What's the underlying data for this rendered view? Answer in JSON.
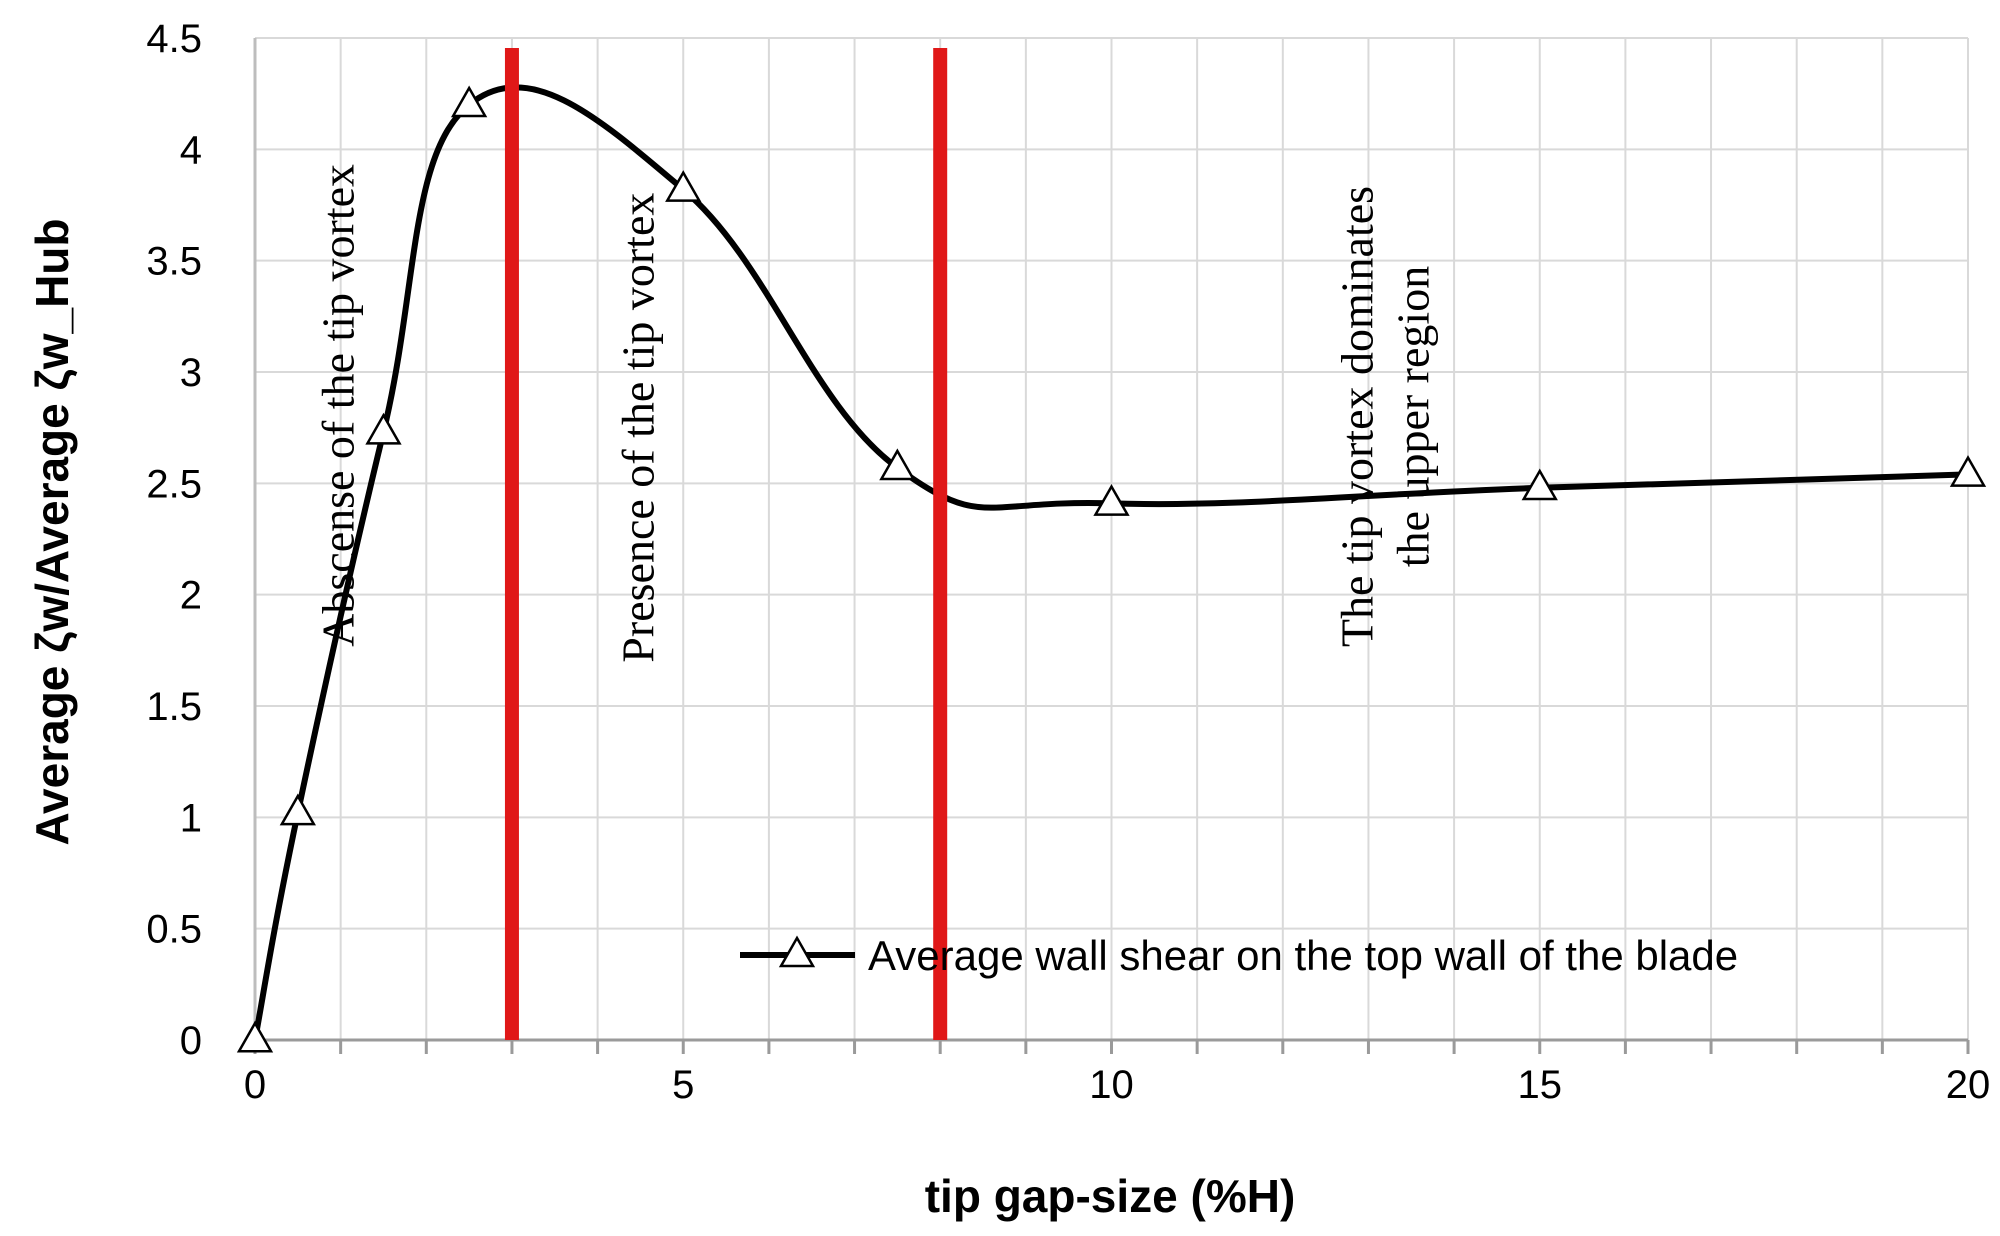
{
  "chart_data": {
    "type": "line",
    "title": "",
    "xlabel": "tip gap-size (%H)",
    "ylabel": "Average ζw/Average ζw_Hub",
    "xlim": [
      0,
      20
    ],
    "ylim": [
      0,
      4.5
    ],
    "x_ticks": [
      "0",
      "5",
      "10",
      "15",
      "20"
    ],
    "y_ticks": [
      "0",
      "0.5",
      "1",
      "1.5",
      "2",
      "2.5",
      "3",
      "3.5",
      "4",
      "4.5"
    ],
    "grid": true,
    "legend_position": "bottom-right",
    "series": [
      {
        "name": "Average wall shear on the top wall of the blade",
        "marker": "triangle",
        "color": "#000000",
        "x": [
          0,
          0.5,
          1.5,
          2.5,
          5,
          7.5,
          10,
          15,
          20
        ],
        "y": [
          0,
          1.02,
          2.73,
          4.2,
          3.82,
          2.57,
          2.41,
          2.48,
          2.54
        ]
      }
    ],
    "vertical_lines": [
      {
        "x": 3,
        "color": "#e01818"
      },
      {
        "x": 8,
        "color": "#e01818"
      }
    ],
    "annotations": [
      {
        "text": "Abscense of the tip vortex",
        "x": 1.15,
        "y": 2.85
      },
      {
        "text": "Presence of the tip vortex",
        "x": 4.65,
        "y": 2.75
      },
      {
        "text": "The tip vortex dominates",
        "x": 13.05,
        "y": 2.8
      },
      {
        "text": "the upper region",
        "x": 13.7,
        "y": 2.8
      }
    ]
  }
}
